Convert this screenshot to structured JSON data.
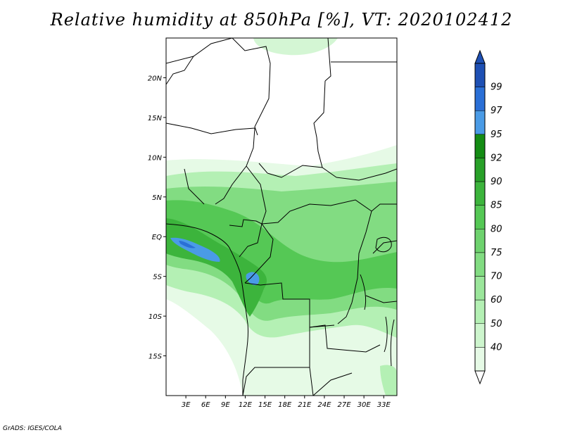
{
  "title": "Relative humidity at 850hPa [%], VT: 2020102412",
  "credit": "GrADS: IGES/COLA",
  "map": {
    "lat_labels": [
      "20N",
      "15N",
      "10N",
      "5N",
      "EQ",
      "5S",
      "10S",
      "15S"
    ],
    "lat_values": [
      20,
      15,
      10,
      5,
      0,
      -5,
      -10,
      -15
    ],
    "lon_labels": [
      "3E",
      "6E",
      "9E",
      "12E",
      "15E",
      "18E",
      "21E",
      "24E",
      "27E",
      "30E",
      "33E"
    ],
    "lon_values": [
      3,
      6,
      9,
      12,
      15,
      18,
      21,
      24,
      27,
      30,
      33
    ],
    "lon_range": [
      0,
      35
    ],
    "lat_range": [
      -20,
      25
    ]
  },
  "colorbar": {
    "levels": [
      "40",
      "50",
      "60",
      "70",
      "75",
      "80",
      "85",
      "90",
      "92",
      "95",
      "97",
      "99"
    ],
    "colors": [
      "#e6fae6",
      "#cdf5cd",
      "#b4f0b4",
      "#9be69b",
      "#82dc82",
      "#6ed26e",
      "#55c855",
      "#3cb43c",
      "#28a028",
      "#148c14",
      "#4a9be6",
      "#2a6fd6",
      "#1e50b4"
    ],
    "below_color": "#ffffff"
  }
}
